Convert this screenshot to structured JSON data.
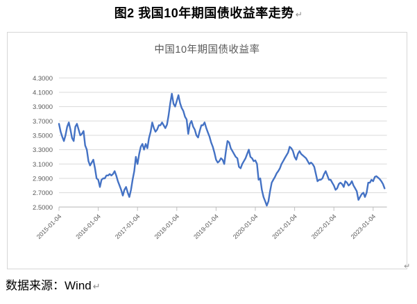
{
  "document": {
    "figure_caption": "图2 我国10年期国债收益率走势",
    "source_caption": "数据来源：Wind",
    "paragraph_mark": "↵"
  },
  "chart_data": {
    "type": "line",
    "title": "中国10年期国债收益率",
    "legend": "none",
    "grid": "horizontal",
    "ylim": [
      2.5,
      4.3
    ],
    "y_tick_step": 0.2,
    "xlim_years": [
      2015.0,
      2023.35
    ],
    "y_tick_labels": [
      "4.3000",
      "4.1000",
      "3.9000",
      "3.7000",
      "3.5000",
      "3.3000",
      "3.1000",
      "2.9000",
      "2.7000",
      "2.5000"
    ],
    "x_tick_labels": [
      "2015-01-04",
      "2016-01-04",
      "2017-01-04",
      "2018-01-04",
      "2019-01-04",
      "2020-01-04",
      "2021-01-04",
      "2022-01-04",
      "2023-01-04"
    ],
    "line_color": "#4472C4",
    "gridline_color": "#d9d9d9",
    "axis_color": "#bfbfbf",
    "label_color": "#595959",
    "series": [
      {
        "name": "中国10年期国债收益率",
        "start": "2015-01",
        "points_per_year": 24,
        "interval": "semi-monthly",
        "values": [
          3.66,
          3.55,
          3.48,
          3.42,
          3.5,
          3.62,
          3.68,
          3.58,
          3.46,
          3.42,
          3.62,
          3.66,
          3.58,
          3.5,
          3.52,
          3.56,
          3.36,
          3.3,
          3.14,
          3.08,
          3.12,
          3.16,
          3.04,
          2.9,
          2.88,
          2.78,
          2.88,
          2.9,
          2.9,
          2.94,
          2.94,
          2.96,
          2.94,
          2.96,
          3.0,
          2.94,
          2.86,
          2.8,
          2.74,
          2.66,
          2.74,
          2.78,
          2.7,
          2.64,
          2.74,
          2.88,
          3.0,
          3.2,
          3.1,
          3.24,
          3.34,
          3.38,
          3.3,
          3.38,
          3.32,
          3.46,
          3.55,
          3.68,
          3.6,
          3.55,
          3.58,
          3.64,
          3.64,
          3.68,
          3.64,
          3.6,
          3.65,
          3.78,
          3.95,
          4.08,
          3.94,
          3.9,
          3.98,
          4.06,
          3.95,
          3.88,
          3.84,
          3.76,
          3.72,
          3.52,
          3.66,
          3.7,
          3.62,
          3.58,
          3.5,
          3.47,
          3.56,
          3.64,
          3.64,
          3.68,
          3.6,
          3.54,
          3.48,
          3.4,
          3.34,
          3.26,
          3.16,
          3.12,
          3.14,
          3.18,
          3.16,
          3.1,
          3.28,
          3.42,
          3.4,
          3.32,
          3.28,
          3.24,
          3.2,
          3.18,
          3.06,
          3.04,
          3.1,
          3.14,
          3.18,
          3.24,
          3.3,
          3.2,
          3.18,
          3.14,
          3.15,
          3.1,
          2.88,
          2.9,
          2.74,
          2.64,
          2.58,
          2.52,
          2.58,
          2.72,
          2.84,
          2.88,
          2.92,
          2.97,
          3.0,
          3.04,
          3.1,
          3.14,
          3.18,
          3.22,
          3.26,
          3.34,
          3.32,
          3.28,
          3.2,
          3.16,
          3.24,
          3.28,
          3.24,
          3.22,
          3.2,
          3.18,
          3.14,
          3.1,
          3.12,
          3.1,
          3.06,
          2.96,
          2.86,
          2.88,
          2.88,
          2.9,
          2.96,
          3.0,
          2.94,
          2.88,
          2.88,
          2.84,
          2.8,
          2.74,
          2.76,
          2.82,
          2.84,
          2.82,
          2.78,
          2.86,
          2.84,
          2.8,
          2.82,
          2.86,
          2.8,
          2.76,
          2.72,
          2.6,
          2.64,
          2.68,
          2.7,
          2.64,
          2.7,
          2.84,
          2.84,
          2.88,
          2.86,
          2.92,
          2.93,
          2.91,
          2.89,
          2.86,
          2.82,
          2.76
        ]
      }
    ]
  }
}
